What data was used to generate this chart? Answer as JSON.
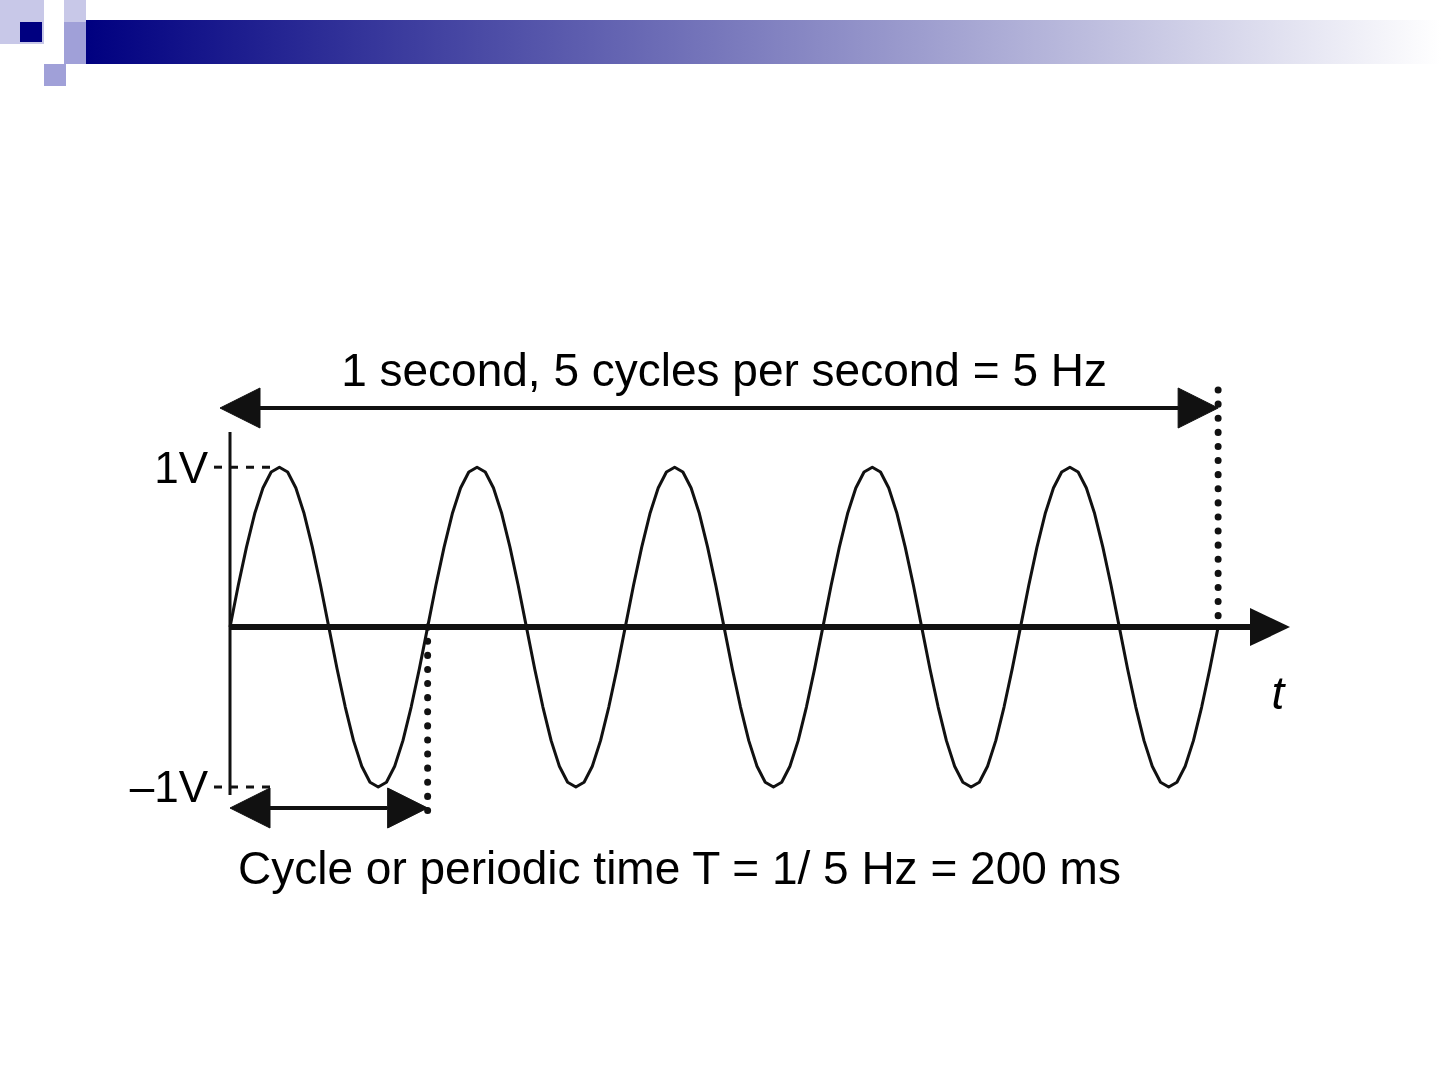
{
  "chart_data": {
    "type": "line",
    "xlabel": "t",
    "categories": [
      null,
      null,
      null,
      null,
      null,
      null,
      null,
      null,
      null,
      null,
      null,
      null,
      null,
      null,
      null,
      null,
      null,
      null,
      null,
      null,
      null,
      null,
      null,
      null,
      null,
      null,
      null,
      null,
      null,
      null,
      null,
      null,
      null,
      null,
      null,
      null,
      null,
      null,
      null,
      null,
      null,
      null,
      null,
      null,
      null,
      null,
      null,
      null,
      null,
      null,
      null,
      null,
      null,
      null,
      null,
      null,
      null,
      null,
      null,
      null,
      null,
      null,
      null,
      null,
      null,
      null,
      null,
      null,
      null,
      null,
      null,
      null,
      null,
      null,
      null,
      null,
      null,
      null,
      null,
      null,
      null,
      null,
      null,
      null,
      null,
      null,
      null,
      null,
      null,
      null,
      null,
      null,
      null,
      null,
      null,
      null,
      null,
      null,
      null,
      null,
      null,
      null,
      null,
      null,
      null,
      null,
      null,
      null,
      null,
      null,
      null,
      null,
      null,
      null,
      null,
      null,
      null,
      null,
      null,
      null,
      null,
      null,
      null,
      null,
      null,
      null,
      null,
      null,
      null
    ],
    "series": [
      {
        "color": "#111111",
        "values": [
          0,
          0.26,
          0.5,
          0.71,
          0.87,
          0.97,
          1,
          0.97,
          0.87,
          0.71,
          0.5,
          0.26,
          0,
          -0.26,
          -0.5,
          -0.71,
          -0.87,
          -0.97,
          -1,
          -0.97,
          -0.87,
          -0.71,
          -0.5,
          -0.26,
          0,
          0.26,
          0.5,
          0.71,
          0.87,
          0.97,
          1,
          0.97,
          0.87,
          0.71,
          0.5,
          0.26,
          0,
          -0.26,
          -0.5,
          -0.71,
          -0.87,
          -0.97,
          -1,
          -0.97,
          -0.87,
          -0.71,
          -0.5,
          -0.26,
          0,
          0.26,
          0.5,
          0.71,
          0.87,
          0.97,
          1,
          0.97,
          0.87,
          0.71,
          0.5,
          0.26,
          0,
          -0.26,
          -0.5,
          -0.71,
          -0.87,
          -0.97,
          -1,
          -0.97,
          -0.87,
          -0.71,
          -0.5,
          -0.26,
          0,
          0.26,
          0.5,
          0.71,
          0.87,
          0.97,
          1,
          0.97,
          0.87,
          0.71,
          0.5,
          0.26,
          0,
          -0.26,
          -0.5,
          -0.71,
          -0.87,
          -0.97,
          -1,
          -0.97,
          -0.87,
          -0.71,
          -0.5,
          -0.26,
          0,
          0.26,
          0.5,
          0.71,
          0.87,
          0.97,
          1,
          0.97,
          0.87,
          0.71,
          0.5,
          0.26,
          0,
          -0.26,
          -0.5,
          -0.71,
          -0.87,
          -0.97,
          -1,
          -0.97,
          -0.87,
          -0.71,
          -0.5,
          -0.26,
          0,
          null,
          null,
          null,
          null,
          null,
          null,
          null,
          null
        ]
      }
    ],
    "ylim": [
      -1.05,
      1.22
    ],
    "yticks": [
      {
        "value": 1,
        "label": "1V"
      },
      {
        "value": -1,
        "label": "–1V"
      }
    ],
    "tick_labels": "y",
    "line_style": "solid",
    "annotations": [
      "1 second, 5 cycles per second = 5 Hz",
      "Cycle or periodic time T = 1/ 5 Hz = 200 ms"
    ]
  }
}
